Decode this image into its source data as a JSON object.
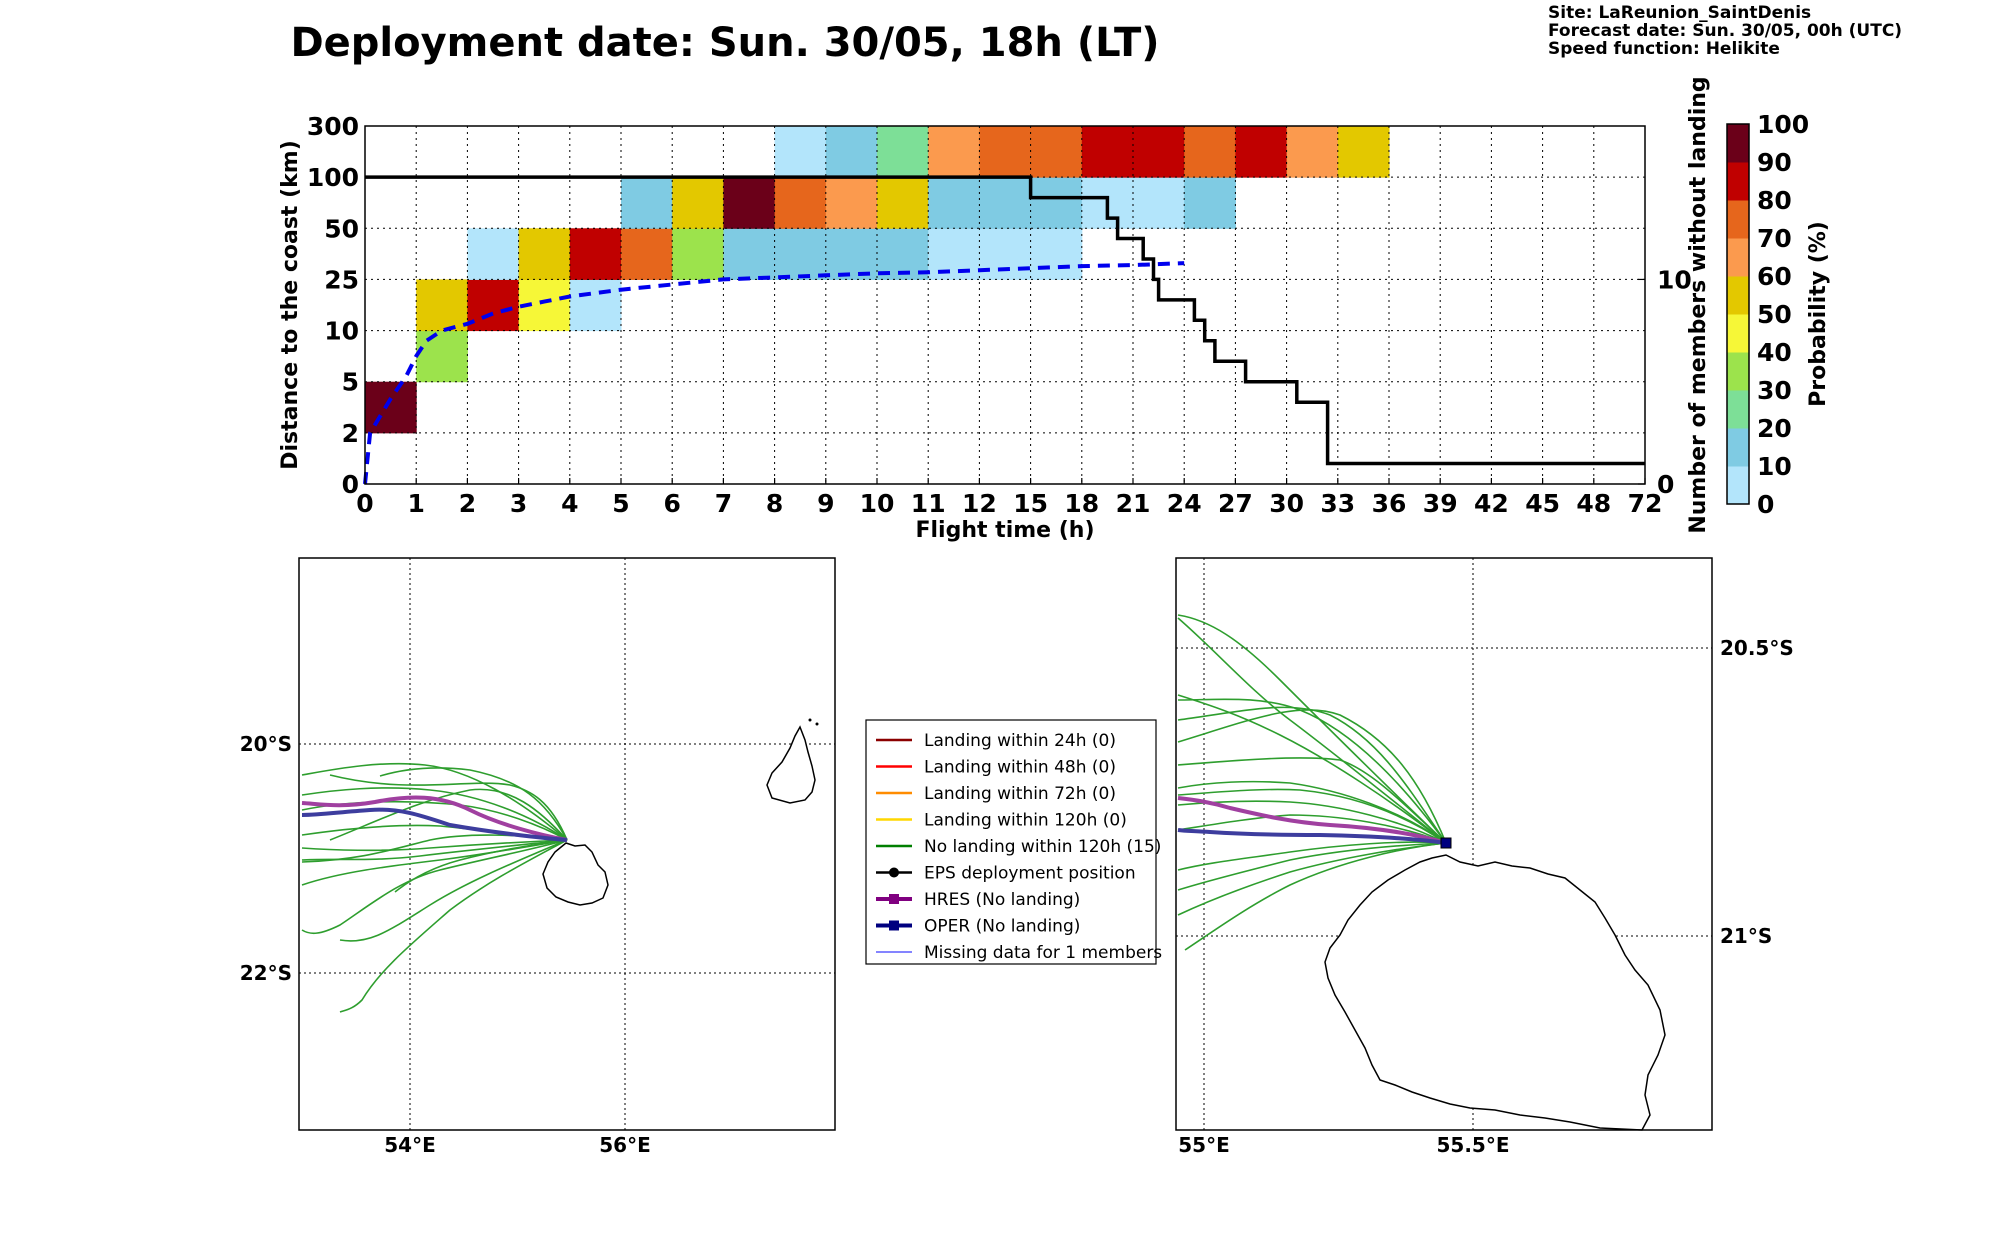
{
  "header": {
    "title": "Deployment date: Sun. 30/05, 18h (LT)",
    "site": "Site: LaReunion_SaintDenis",
    "forecast": "Forecast date: Sun. 30/05, 00h (UTC)",
    "speed": "Speed function: Helikite"
  },
  "chart_data": [
    {
      "type": "heatmap",
      "xlabel": "Flight time (h)",
      "ylabel": "Distance to the coast (km)",
      "ylabel_right": "Number of members without landing",
      "x_ticks": [
        "0",
        "1",
        "2",
        "3",
        "4",
        "5",
        "6",
        "7",
        "8",
        "9",
        "10",
        "11",
        "12",
        "15",
        "18",
        "21",
        "24",
        "27",
        "30",
        "33",
        "36",
        "39",
        "42",
        "45",
        "48",
        "72"
      ],
      "y_ticks": [
        "0",
        "2",
        "5",
        "10",
        "25",
        "50",
        "100",
        "300"
      ],
      "right_ticks": [
        "0",
        "10"
      ],
      "right_range": [
        0,
        17.5
      ],
      "grid": true,
      "colorbar": {
        "label": "Probability (%)",
        "ticks": [
          "0",
          "10",
          "20",
          "30",
          "40",
          "50",
          "60",
          "70",
          "80",
          "90",
          "100"
        ],
        "colors": [
          "#b3e5fb",
          "#7fcbe3",
          "#7ddf97",
          "#9ce34c",
          "#f6f737",
          "#e3c800",
          "#fb9a4e",
          "#e6661c",
          "#c00000",
          "#6b0019"
        ]
      },
      "cells": [
        {
          "x": 0,
          "y": 1,
          "p": 95
        },
        {
          "x": 1,
          "y": 2,
          "p": 35
        },
        {
          "x": 1,
          "y": 3,
          "p": 55
        },
        {
          "x": 2,
          "y": 3,
          "p": 85
        },
        {
          "x": 2,
          "y": 4,
          "p": 5
        },
        {
          "x": 3,
          "y": 3,
          "p": 45
        },
        {
          "x": 3,
          "y": 4,
          "p": 55
        },
        {
          "x": 4,
          "y": 3,
          "p": 5
        },
        {
          "x": 4,
          "y": 4,
          "p": 85
        },
        {
          "x": 5,
          "y": 4,
          "p": 75
        },
        {
          "x": 5,
          "y": 5,
          "p": 15
        },
        {
          "x": 6,
          "y": 4,
          "p": 35
        },
        {
          "x": 6,
          "y": 5,
          "p": 55
        },
        {
          "x": 7,
          "y": 4,
          "p": 15
        },
        {
          "x": 7,
          "y": 5,
          "p": 95
        },
        {
          "x": 8,
          "y": 4,
          "p": 15
        },
        {
          "x": 8,
          "y": 5,
          "p": 75
        },
        {
          "x": 8,
          "y": 6,
          "p": 5
        },
        {
          "x": 9,
          "y": 4,
          "p": 15
        },
        {
          "x": 9,
          "y": 5,
          "p": 65
        },
        {
          "x": 9,
          "y": 6,
          "p": 15
        },
        {
          "x": 10,
          "y": 4,
          "p": 15
        },
        {
          "x": 10,
          "y": 5,
          "p": 55
        },
        {
          "x": 10,
          "y": 6,
          "p": 25
        },
        {
          "x": 11,
          "y": 4,
          "p": 5
        },
        {
          "x": 11,
          "y": 5,
          "p": 15
        },
        {
          "x": 11,
          "y": 6,
          "p": 65
        },
        {
          "x": 12,
          "y": 4,
          "p": 5
        },
        {
          "x": 12,
          "y": 5,
          "p": 15
        },
        {
          "x": 12,
          "y": 6,
          "p": 75
        },
        {
          "x": 13,
          "y": 4,
          "p": 5
        },
        {
          "x": 13,
          "y": 5,
          "p": 15
        },
        {
          "x": 13,
          "y": 6,
          "p": 75
        },
        {
          "x": 14,
          "y": 5,
          "p": 5
        },
        {
          "x": 14,
          "y": 6,
          "p": 85
        },
        {
          "x": 15,
          "y": 5,
          "p": 5
        },
        {
          "x": 15,
          "y": 6,
          "p": 85
        },
        {
          "x": 16,
          "y": 5,
          "p": 15
        },
        {
          "x": 16,
          "y": 6,
          "p": 75
        },
        {
          "x": 17,
          "y": 6,
          "p": 85
        },
        {
          "x": 18,
          "y": 6,
          "p": 65
        },
        {
          "x": 19,
          "y": 6,
          "p": 55
        }
      ],
      "median_distance_km": [
        [
          0,
          0
        ],
        [
          0.1,
          2.0
        ],
        [
          0.3,
          3.0
        ],
        [
          0.5,
          4.0
        ],
        [
          0.8,
          5.5
        ],
        [
          1.0,
          7.5
        ],
        [
          1.2,
          9.0
        ],
        [
          1.5,
          10
        ],
        [
          2.0,
          12.0
        ],
        [
          2.5,
          15
        ],
        [
          3.0,
          17.0
        ],
        [
          3.5,
          18.5
        ],
        [
          4.0,
          20.0
        ],
        [
          4.5,
          21.0
        ],
        [
          5.0,
          22.0
        ],
        [
          6.0,
          23.5
        ],
        [
          7.0,
          25.0
        ],
        [
          8.0,
          26.0
        ],
        [
          9.0,
          27.0
        ],
        [
          10.0,
          28.0
        ],
        [
          11.0,
          28.5
        ],
        [
          12.0,
          29.5
        ],
        [
          13.0,
          30.5
        ],
        [
          14.0,
          31.5
        ],
        [
          15.0,
          32.0
        ],
        [
          16.0,
          33.0
        ]
      ],
      "members_without_landing": [
        [
          0,
          15
        ],
        [
          13,
          15
        ],
        [
          13,
          14
        ],
        [
          14.5,
          14
        ],
        [
          14.5,
          13
        ],
        [
          14.7,
          13
        ],
        [
          14.7,
          12
        ],
        [
          15.2,
          12
        ],
        [
          15.2,
          11
        ],
        [
          15.4,
          11
        ],
        [
          15.4,
          10
        ],
        [
          15.5,
          10
        ],
        [
          15.5,
          9
        ],
        [
          16.2,
          9
        ],
        [
          16.2,
          8
        ],
        [
          16.4,
          8
        ],
        [
          16.4,
          7
        ],
        [
          16.6,
          7
        ],
        [
          16.6,
          6
        ],
        [
          17.2,
          6
        ],
        [
          17.2,
          5
        ],
        [
          18.2,
          5
        ],
        [
          18.2,
          4
        ],
        [
          18.8,
          4
        ],
        [
          18.8,
          1
        ],
        [
          25,
          1
        ]
      ]
    },
    {
      "type": "map",
      "name": "regional",
      "lon_ticks": [
        "54°E",
        "56°E"
      ],
      "lat_ticks": [
        "20°S",
        "22°S"
      ],
      "lon_range": [
        53.0,
        58.0
      ],
      "lat_range": [
        -23.5,
        -18.5
      ]
    },
    {
      "type": "map",
      "name": "zoom",
      "lon_ticks": [
        "55°E",
        "55.5°E"
      ],
      "lat_ticks": [
        "20.5°S",
        "21°S"
      ],
      "lon_range": [
        54.95,
        55.95
      ],
      "lat_range": [
        -21.4,
        -20.3
      ]
    }
  ],
  "legend": {
    "items": [
      {
        "label": "Landing within 24h (0)",
        "color": "#8b0000",
        "kind": "line"
      },
      {
        "label": "Landing within 48h (0)",
        "color": "#ff0000",
        "kind": "line"
      },
      {
        "label": "Landing within 72h (0)",
        "color": "#ff8c00",
        "kind": "line"
      },
      {
        "label": "Landing within 120h (0)",
        "color": "#ffd700",
        "kind": "line"
      },
      {
        "label": "No landing within 120h (15)",
        "color": "#007f00",
        "kind": "line"
      },
      {
        "label": "EPS deployment position",
        "color": "#000000",
        "kind": "dot"
      },
      {
        "label": "HRES (No landing)",
        "color": "#800080",
        "kind": "square"
      },
      {
        "label": "OPER (No landing)",
        "color": "#00007f",
        "kind": "square"
      },
      {
        "label": "Missing data for 1 members",
        "color": "#3b3bff",
        "kind": "thin"
      }
    ]
  }
}
